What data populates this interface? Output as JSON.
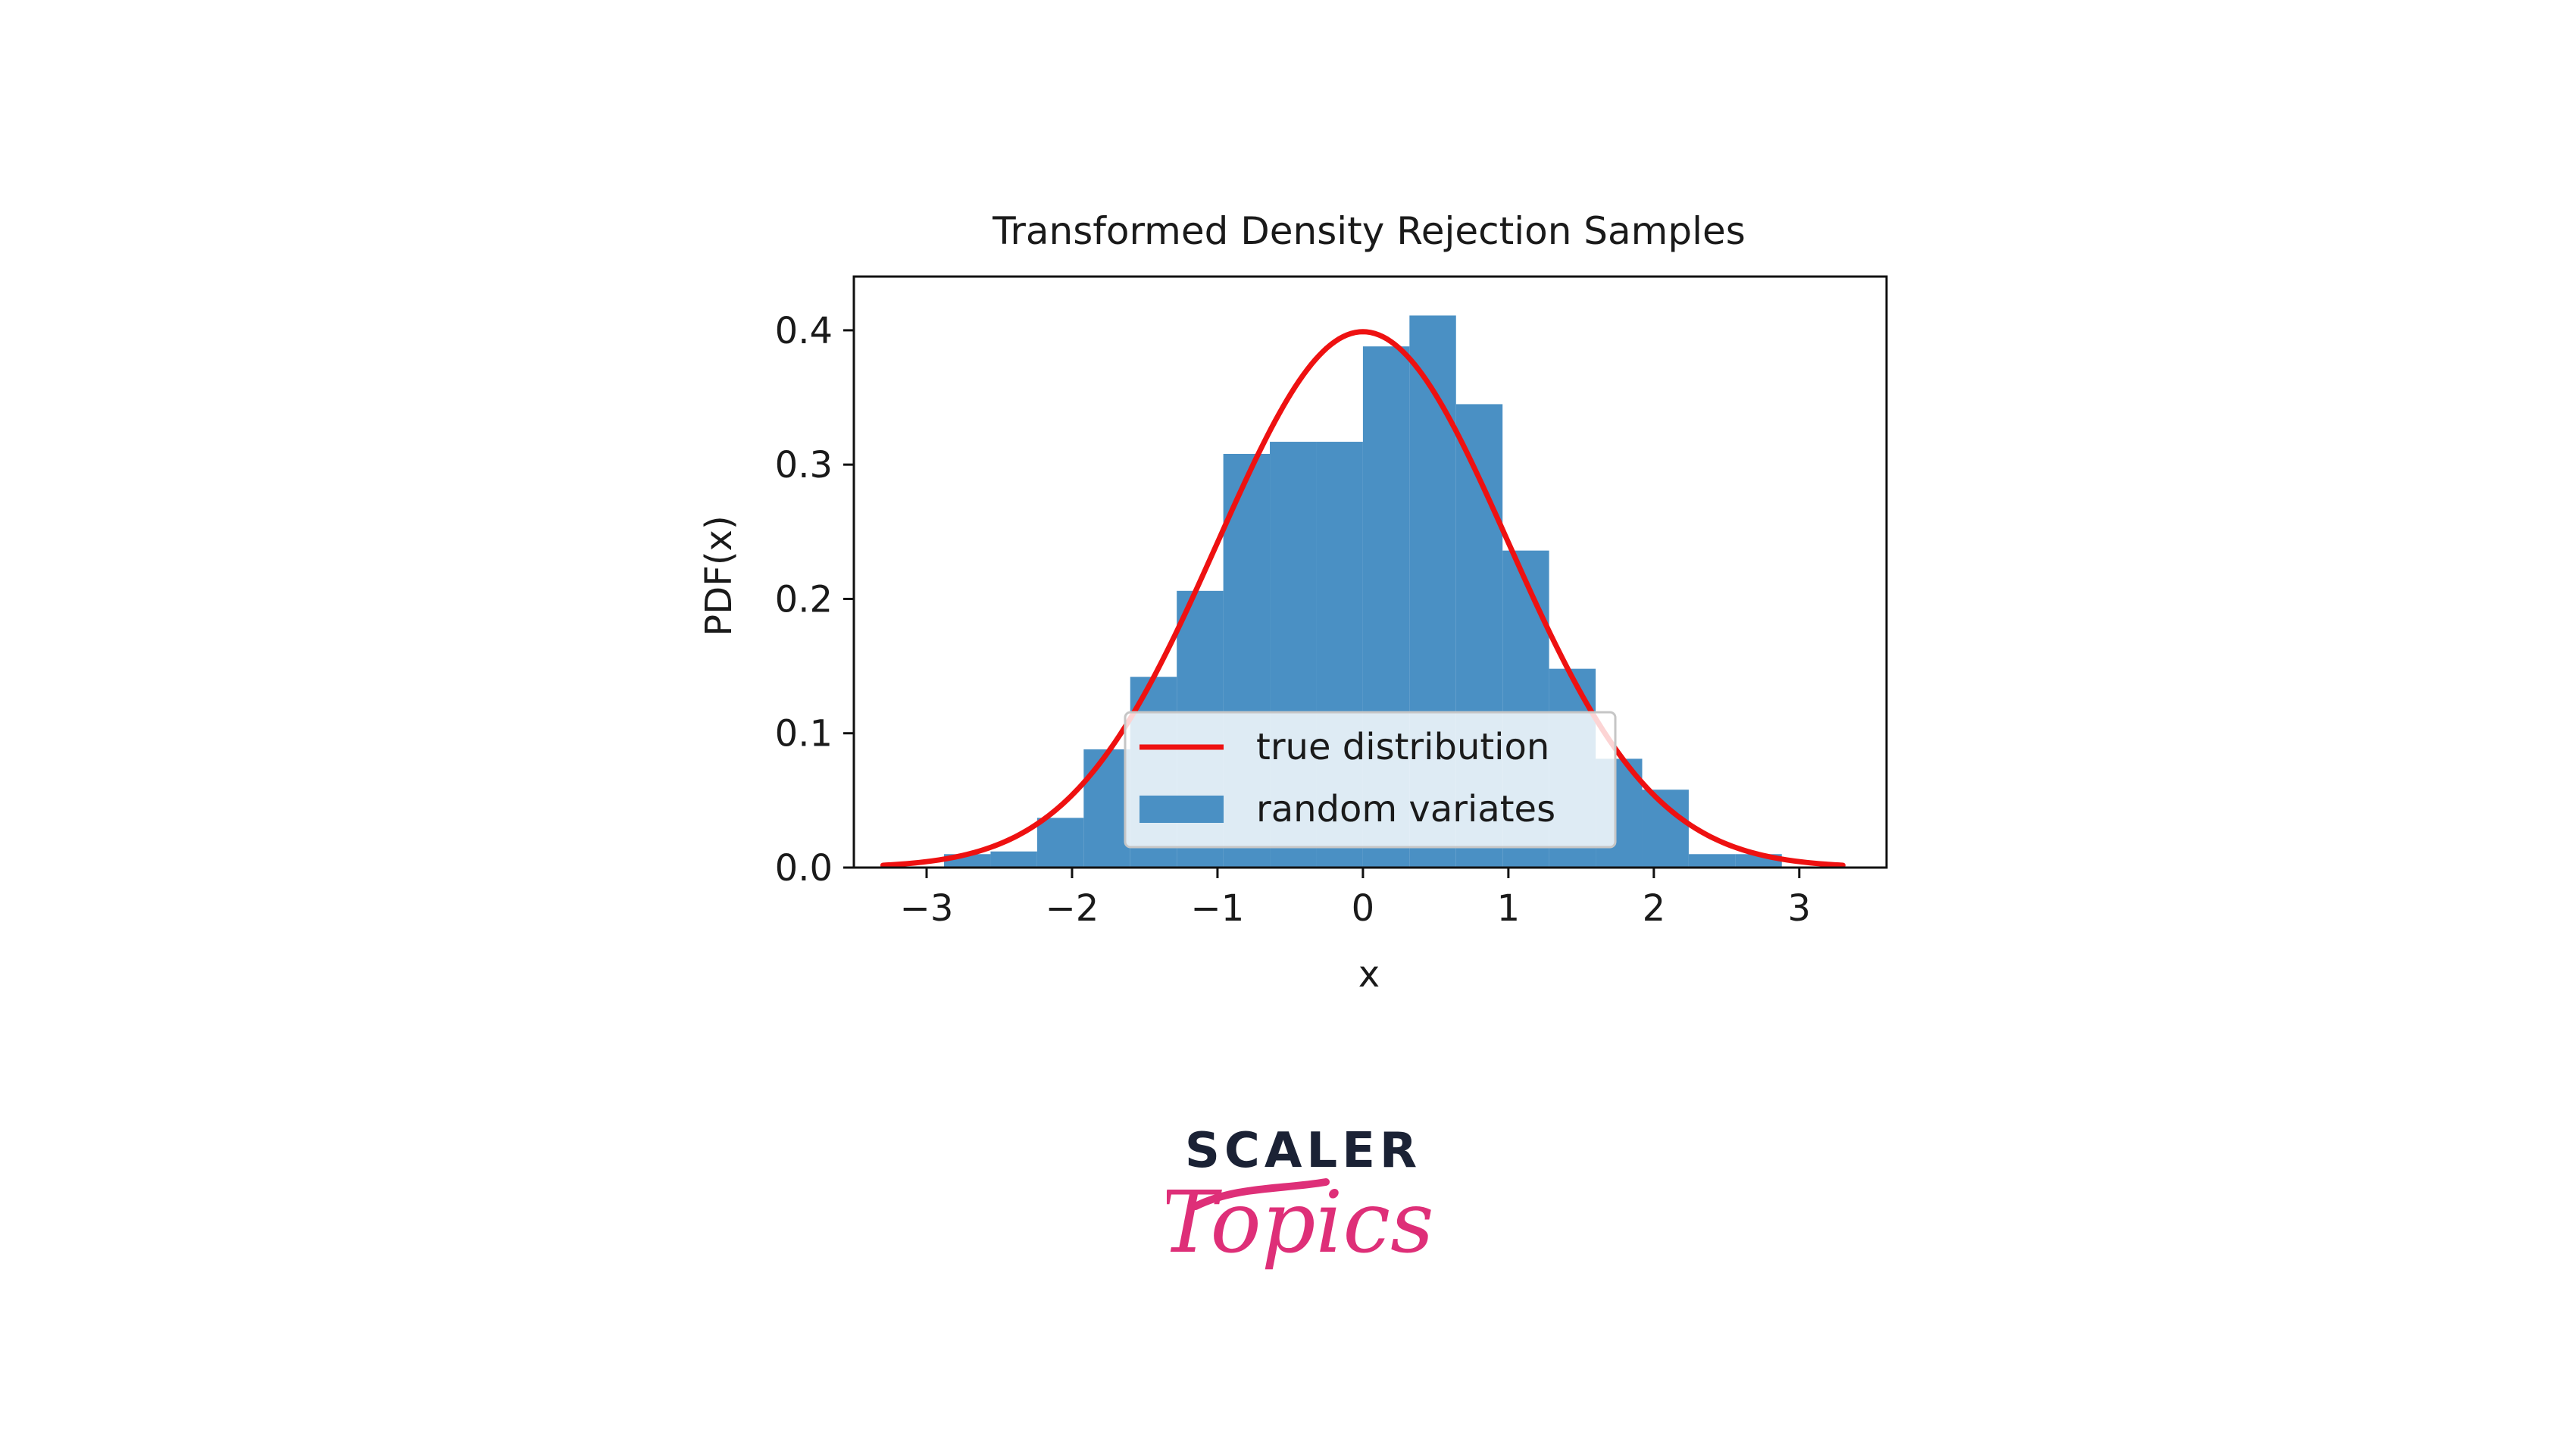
{
  "chart_data": {
    "type": "bar",
    "title": "Transformed Density Rejection Samples",
    "xlabel": "x",
    "ylabel": "PDF(x)",
    "xlim": [
      -3.5,
      3.6
    ],
    "ylim": [
      0,
      0.44
    ],
    "xticks": [
      -3,
      -2,
      -1,
      0,
      1,
      2,
      3
    ],
    "yticks": [
      0.0,
      0.1,
      0.2,
      0.3,
      0.4
    ],
    "xtick_labels": [
      "−3",
      "−2",
      "−1",
      "0",
      "1",
      "2",
      "3"
    ],
    "ytick_labels": [
      "0.0",
      "0.1",
      "0.2",
      "0.3",
      "0.4"
    ],
    "grid": false,
    "legend_position": "lower-center",
    "histogram": {
      "name": "random variates",
      "color": "#4a90c4",
      "bin_edges": [
        -2.88,
        -2.56,
        -2.24,
        -1.92,
        -1.6,
        -1.28,
        -0.96,
        -0.64,
        -0.32,
        0.0,
        0.32,
        0.64,
        0.96,
        1.28,
        1.6,
        1.92,
        2.24,
        2.56,
        2.88
      ],
      "density": [
        0.01,
        0.012,
        0.037,
        0.088,
        0.142,
        0.206,
        0.308,
        0.317,
        0.317,
        0.388,
        0.411,
        0.345,
        0.236,
        0.148,
        0.081,
        0.058,
        0.01,
        0.01
      ]
    },
    "line": {
      "name": "true distribution",
      "color": "#ee1111",
      "x_range": [
        -3.3,
        3.3
      ],
      "function": "standard normal pdf"
    }
  },
  "logo": {
    "word": "SCALER",
    "script": "Topics",
    "word_color": "#1b2235",
    "script_color": "#de2f78"
  }
}
